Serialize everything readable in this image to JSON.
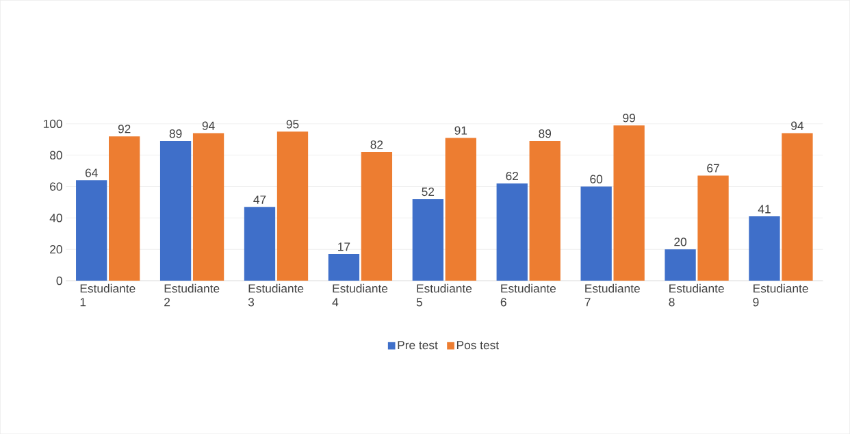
{
  "chart_data": {
    "type": "bar",
    "categories": [
      "Estudiante 1",
      "Estudiante 2",
      "Estudiante 3",
      "Estudiante 4",
      "Estudiante 5",
      "Estudiante 6",
      "Estudiante 7",
      "Estudiante 8",
      "Estudiante 9"
    ],
    "series": [
      {
        "name": "Pre test",
        "color": "#3f6fc9",
        "values": [
          64,
          89,
          47,
          17,
          52,
          62,
          60,
          20,
          41
        ]
      },
      {
        "name": "Pos test",
        "color": "#ed7d31",
        "values": [
          92,
          94,
          95,
          82,
          91,
          89,
          99,
          67,
          94
        ]
      }
    ],
    "ylim": [
      0,
      100
    ],
    "yticks": [
      0,
      20,
      40,
      60,
      80,
      100
    ],
    "grid": "y",
    "legend": "bottom",
    "data_labels": true
  }
}
